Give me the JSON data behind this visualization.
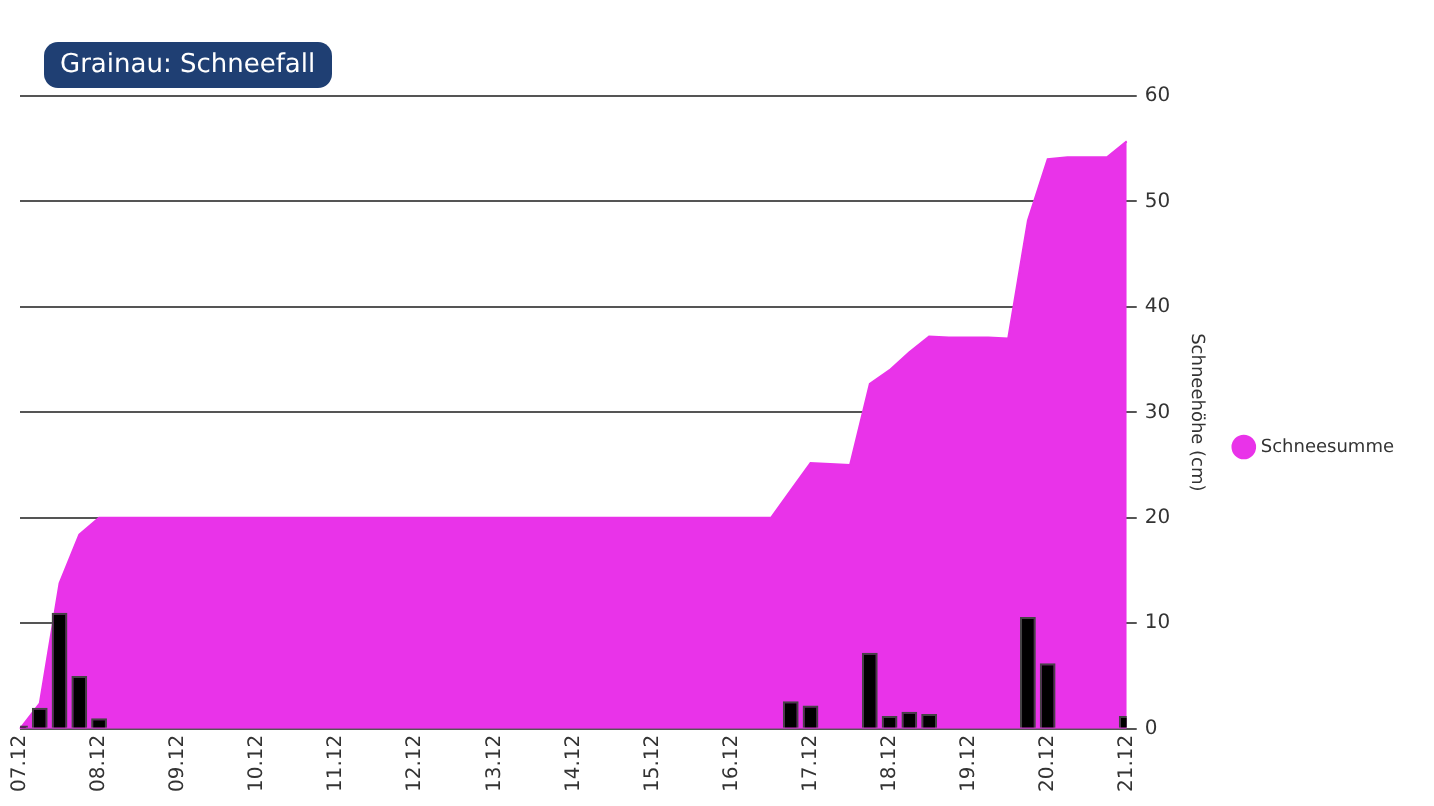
{
  "chart_data": {
    "type": "area",
    "title": "Grainau: Schneefall",
    "ylabel": "Schneehöhe (cm)",
    "categories": [
      "07.12",
      null,
      null,
      null,
      "08.12",
      null,
      null,
      null,
      "09.12",
      null,
      null,
      null,
      "10.12",
      null,
      null,
      null,
      "11.12",
      null,
      null,
      null,
      "12.12",
      null,
      null,
      null,
      "13.12",
      null,
      null,
      null,
      "14.12",
      null,
      null,
      null,
      "15.12",
      null,
      null,
      null,
      "16.12",
      null,
      null,
      null,
      "17.12",
      null,
      null,
      null,
      "18.12",
      null,
      null,
      null,
      "19.12",
      null,
      null,
      null,
      "20.12",
      null,
      null,
      null,
      "21.12"
    ],
    "ylim": [
      0,
      60
    ],
    "yticks": [
      0,
      10,
      20,
      30,
      40,
      50,
      60
    ],
    "grid": "y",
    "legend": "right",
    "series": [
      {
        "name": "Schneesumme",
        "color": "#e933e9",
        "values": [
          0,
          2.4,
          13.8,
          18.4,
          20,
          20,
          20,
          20,
          20,
          20,
          20,
          20,
          20,
          20,
          20,
          20,
          20,
          20,
          20,
          20,
          20,
          20,
          20,
          20,
          20,
          20,
          20,
          20,
          20,
          20,
          20,
          20,
          20,
          20,
          20,
          20,
          20,
          20,
          20,
          22.6,
          25.2,
          25.1,
          25,
          32.7,
          34,
          35.7,
          37.2,
          37.1,
          37.1,
          37.1,
          37,
          48.2,
          54,
          54.2,
          54.2,
          54.2,
          55.7
        ]
      },
      {
        "type": "bar",
        "color": "#000000",
        "values": [
          0.3,
          2,
          11,
          5,
          1,
          null,
          null,
          null,
          null,
          null,
          null,
          null,
          null,
          null,
          null,
          null,
          null,
          null,
          null,
          null,
          null,
          null,
          null,
          null,
          null,
          null,
          null,
          null,
          null,
          null,
          null,
          null,
          null,
          null,
          null,
          null,
          null,
          null,
          null,
          2.6,
          2.2,
          null,
          null,
          7.2,
          1.2,
          1.6,
          1.4,
          null,
          null,
          null,
          null,
          10.6,
          6.2,
          null,
          null,
          null,
          1.2
        ]
      }
    ]
  }
}
